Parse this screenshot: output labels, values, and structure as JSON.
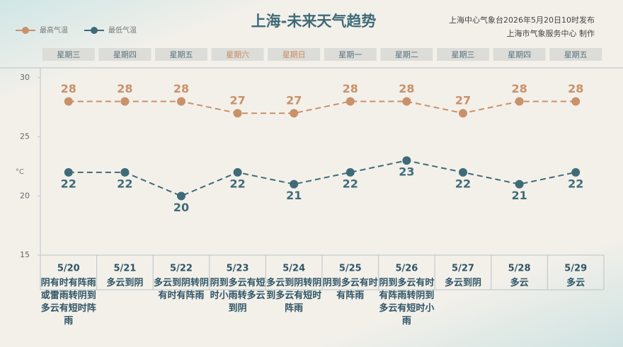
{
  "chart_data": {
    "type": "line",
    "title": "上海-未来天气趋势",
    "source": [
      "上海中心气象台2026年5月20日10时发布",
      "上海市气象服务中心 制作"
    ],
    "y_label": "°C",
    "weekdays": [
      "星期三",
      "星期四",
      "星期五",
      "星期六",
      "星期日",
      "星期一",
      "星期二",
      "星期三",
      "星期四",
      "星期五"
    ],
    "weekday_colors": [
      "#55707c",
      "#55707c",
      "#55707c",
      "#c98a5e",
      "#c98a5e",
      "#55707c",
      "#55707c",
      "#55707c",
      "#55707c",
      "#55707c"
    ],
    "categories": [
      "5/20",
      "5/21",
      "5/22",
      "5/23",
      "5/24",
      "5/25",
      "5/26",
      "5/27",
      "5/28",
      "5/29"
    ],
    "weather": [
      "阴有时有阵雨或雷雨转阴到多云有短时阵雨",
      "多云到阴",
      "多云到阴转阴有时有阵雨",
      "阴到多云有短时小雨转多云到阴",
      "多云到阴转阴到多云有短时阵雨",
      "阴到多云有时有阵雨",
      "阴到多云有时有阵雨转阴到多云有短时小雨",
      "多云到阴",
      "多云",
      "多云"
    ],
    "series": [
      {
        "name": "最高气温",
        "color": "#c9916a",
        "values": [
          28,
          28,
          28,
          27,
          27,
          28,
          28,
          27,
          28,
          28
        ]
      },
      {
        "name": "最低气温",
        "color": "#3f6b78",
        "values": [
          22,
          22,
          20,
          22,
          21,
          22,
          23,
          22,
          21,
          22
        ]
      }
    ],
    "ylim": [
      15,
      30
    ],
    "yticks": [
      15,
      20,
      25,
      30
    ]
  }
}
